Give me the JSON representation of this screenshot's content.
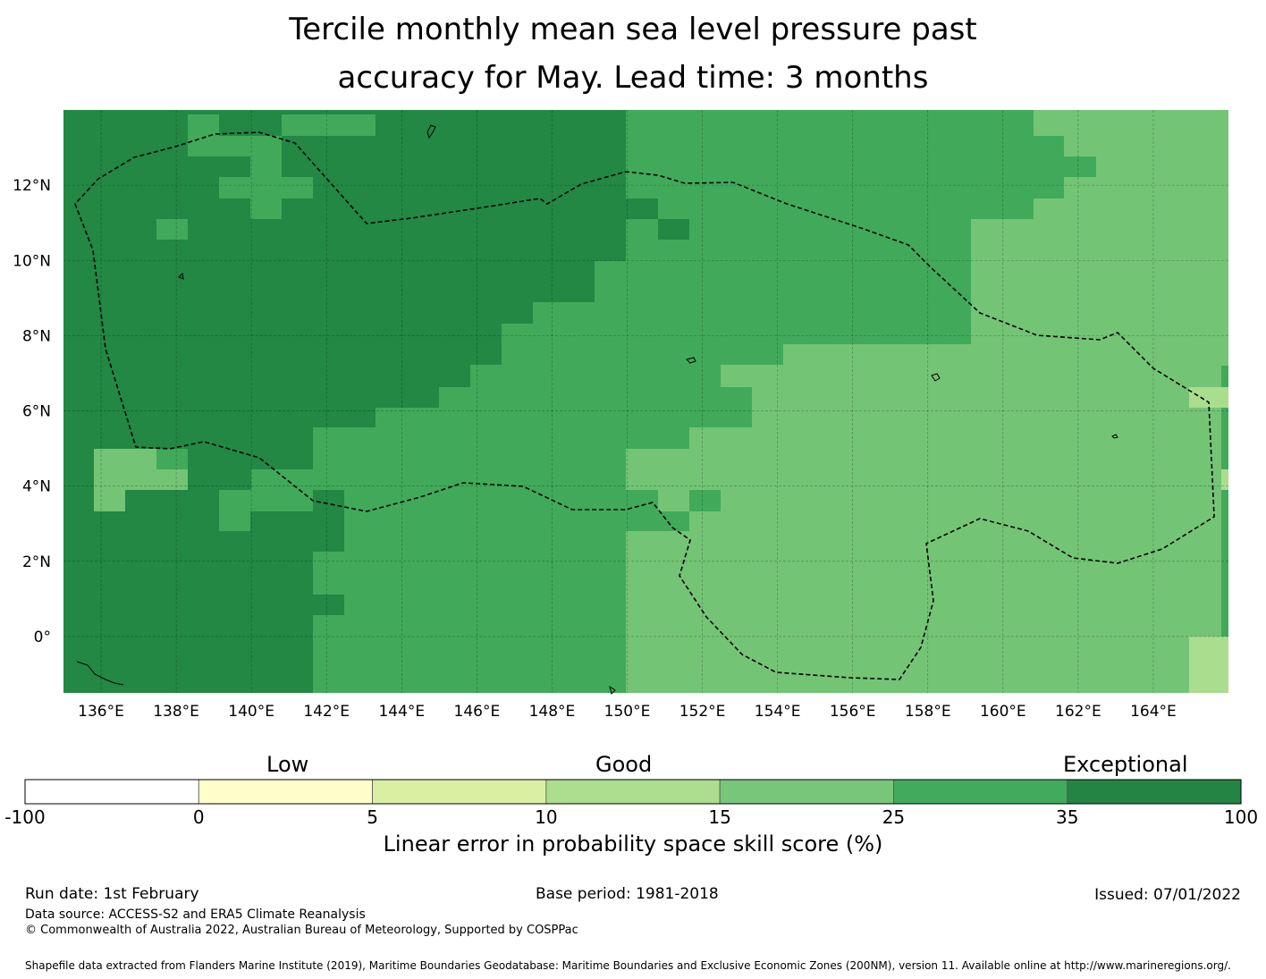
{
  "title_line1": "Tercile monthly mean sea level pressure past",
  "title_line2": "accuracy for May. Lead time: 3 months",
  "map": {
    "lon_ticks": [
      "136°E",
      "138°E",
      "140°E",
      "142°E",
      "144°E",
      "146°E",
      "148°E",
      "150°E",
      "152°E",
      "154°E",
      "156°E",
      "158°E",
      "160°E",
      "162°E",
      "164°E"
    ],
    "lat_ticks": [
      "12°N",
      "10°N",
      "8°N",
      "6°N",
      "4°N",
      "2°N",
      "0°"
    ],
    "lon_values": [
      136,
      138,
      140,
      142,
      144,
      146,
      148,
      150,
      152,
      154,
      156,
      158,
      160,
      162,
      164
    ],
    "lat_values": [
      12,
      10,
      8,
      6,
      4,
      2,
      0
    ],
    "lon_range": [
      135,
      166
    ],
    "lat_range": [
      -1.5,
      14
    ],
    "grid_lines": "dashed",
    "eez_boundary": "dashed black outline (Micronesia EEZ)",
    "region_colors": {
      "exceptional": "#228844",
      "good_high": "#40aa5a",
      "good_mid": "#74c476",
      "good_low": "#aadd8e"
    }
  },
  "colorbar": {
    "categories": [
      "Low",
      "Good",
      "Exceptional"
    ],
    "tick_labels": [
      "-100",
      "0",
      "5",
      "10",
      "15",
      "25",
      "35",
      "100"
    ],
    "bins": [
      {
        "from": -100,
        "to": 0,
        "color": "#ffffff"
      },
      {
        "from": 0,
        "to": 5,
        "color": "#ffffcc"
      },
      {
        "from": 5,
        "to": 10,
        "color": "#d9f0a3"
      },
      {
        "from": 10,
        "to": 15,
        "color": "#addd8e"
      },
      {
        "from": 15,
        "to": 25,
        "color": "#78c679"
      },
      {
        "from": 25,
        "to": 35,
        "color": "#41ab5d"
      },
      {
        "from": 35,
        "to": 100,
        "color": "#238443"
      }
    ],
    "title": "Linear error in probability space skill score (%)"
  },
  "footer": {
    "run_date": "Run date: 1st February",
    "base_period": "Base period: 1981-2018",
    "issued": "Issued: 07/01/2022",
    "data_source": "Data source: ACCESS-S2 and ERA5 Climate Reanalysis",
    "copyright": "© Commonwealth of Australia 2022, Australian Bureau of Meteorology, Supported by COSPPac",
    "shapefile": "Shapefile data extracted from Flanders Marine Institute (2019), Maritime Boundaries Geodatabase: Maritime Boundaries and Exclusive Economic Zones (200NM), version 11. Available online at http://www.marineregions.org/."
  }
}
